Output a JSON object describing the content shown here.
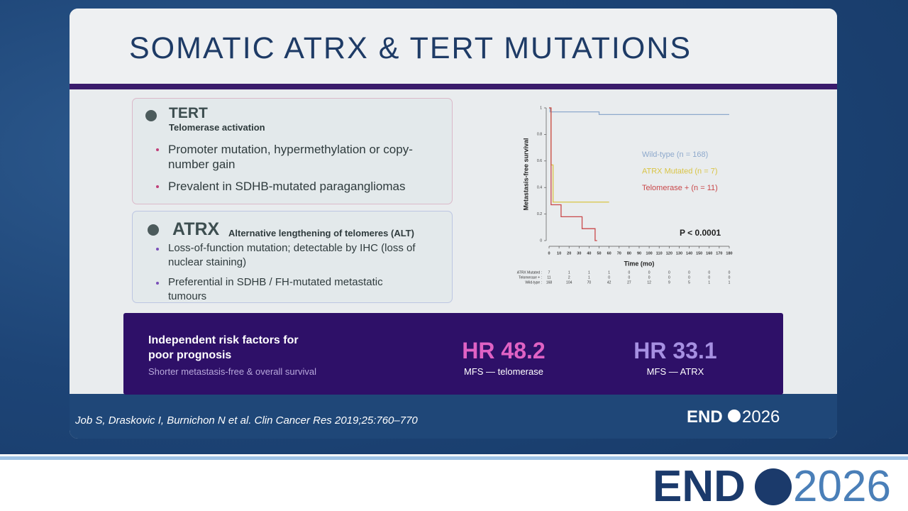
{
  "slide": {
    "title": "SOMATIC ATRX & TERT MUTATIONS",
    "cards": [
      {
        "heading": "TERT",
        "subheading": "Telomerase activation",
        "bullets": [
          "Promoter mutation, hypermethylation or copy-number gain",
          "Prevalent in SDHB-mutated paragangliomas"
        ]
      },
      {
        "heading": "ATRX",
        "subheading": "Alternative lengthening of telomeres (ALT)",
        "bullets": [
          "Loss-of-function mutation; detectable by IHC (loss of nuclear staining)",
          "Preferential in SDHB / FH-mutated metastatic tumours"
        ]
      }
    ],
    "banner": {
      "title": "Independent risk factors for poor prognosis",
      "subtitle": "Shorter metastasis-free & overall survival",
      "stats": [
        {
          "value": "HR 48.2",
          "label": "MFS — telomerase"
        },
        {
          "value": "HR 33.1",
          "label": "MFS — ATRX"
        }
      ]
    },
    "citation": "Job S, Draskovic I, Burnichon N et al. Clin Cancer Res 2019;25:760–770",
    "logo": {
      "left": "END",
      "right": "2026"
    }
  },
  "chart_data": {
    "type": "line",
    "xlabel": "Time (mo)",
    "ylabel": "Metastasis-free survival",
    "xlim": [
      0,
      180
    ],
    "ylim": [
      0,
      1
    ],
    "xticks": [
      0,
      10,
      20,
      30,
      40,
      50,
      60,
      70,
      80,
      90,
      100,
      110,
      120,
      130,
      140,
      150,
      160,
      170,
      180
    ],
    "yticks": [
      0,
      0.2,
      0.4,
      0.6,
      0.8,
      1
    ],
    "series": [
      {
        "name": "Wild-type (n = 168)",
        "color": "#8ea9cc",
        "x": [
          0,
          1,
          1,
          50,
          50,
          180
        ],
        "values": [
          1,
          1,
          0.97,
          0.97,
          0.95,
          0.95
        ]
      },
      {
        "name": "ATRX Mutated (n = 7)",
        "color": "#d9c445",
        "x": [
          0,
          2,
          2,
          4,
          4,
          60
        ],
        "values": [
          1,
          1,
          0.57,
          0.57,
          0.29,
          0.29
        ]
      },
      {
        "name": "Telomerase + (n = 11)",
        "color": "#c9484a",
        "x": [
          0,
          2,
          2,
          12,
          12,
          33,
          33,
          46,
          46,
          48
        ],
        "values": [
          1,
          1,
          0.27,
          0.27,
          0.18,
          0.18,
          0.09,
          0.09,
          0,
          0
        ]
      }
    ],
    "annotation": "P < 0.0001",
    "at_risk": [
      {
        "label": "ATRX Mutated :",
        "counts": [
          7,
          1,
          1,
          1,
          0,
          0,
          0,
          0,
          0,
          0
        ]
      },
      {
        "label": "Telomerase + :",
        "counts": [
          11,
          2,
          1,
          0,
          0,
          0,
          0,
          0,
          0,
          0
        ]
      },
      {
        "label": "Wild-type :",
        "counts": [
          168,
          104,
          70,
          42,
          27,
          12,
          9,
          5,
          1,
          1
        ]
      }
    ]
  }
}
